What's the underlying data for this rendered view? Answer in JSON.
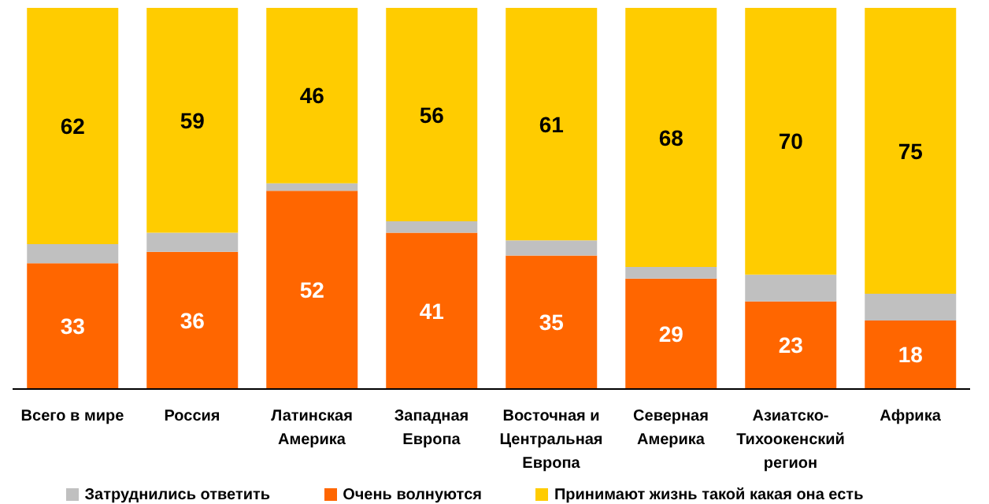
{
  "chart_data": {
    "type": "bar",
    "stacked": true,
    "legend": "bottom",
    "categories": [
      "Всего в мире",
      "Россия",
      "Латинская Америка",
      "Западная Европа",
      "Восточная и Центральная Европа",
      "Северная Америка",
      "Азиатско-Тихоокенский регион",
      "Африка"
    ],
    "series": [
      {
        "name": "Очень волнуются",
        "color": "#ff6600",
        "values": [
          33,
          36,
          52,
          41,
          35,
          29,
          23,
          18
        ],
        "value_labels": [
          "33",
          "36",
          "52",
          "41",
          "35",
          "29",
          "23",
          "18"
        ]
      },
      {
        "name": "Затруднились ответить",
        "color": "#c0c0c0",
        "values": [
          5,
          5,
          2,
          3,
          4,
          3,
          7,
          7
        ]
      },
      {
        "name": "Принимают жизнь такой какая она есть",
        "color": "#ffcc00",
        "values": [
          62,
          59,
          46,
          56,
          61,
          68,
          70,
          75
        ],
        "value_labels": [
          "62",
          "59",
          "46",
          "56",
          "61",
          "68",
          "70",
          "75"
        ]
      }
    ]
  }
}
